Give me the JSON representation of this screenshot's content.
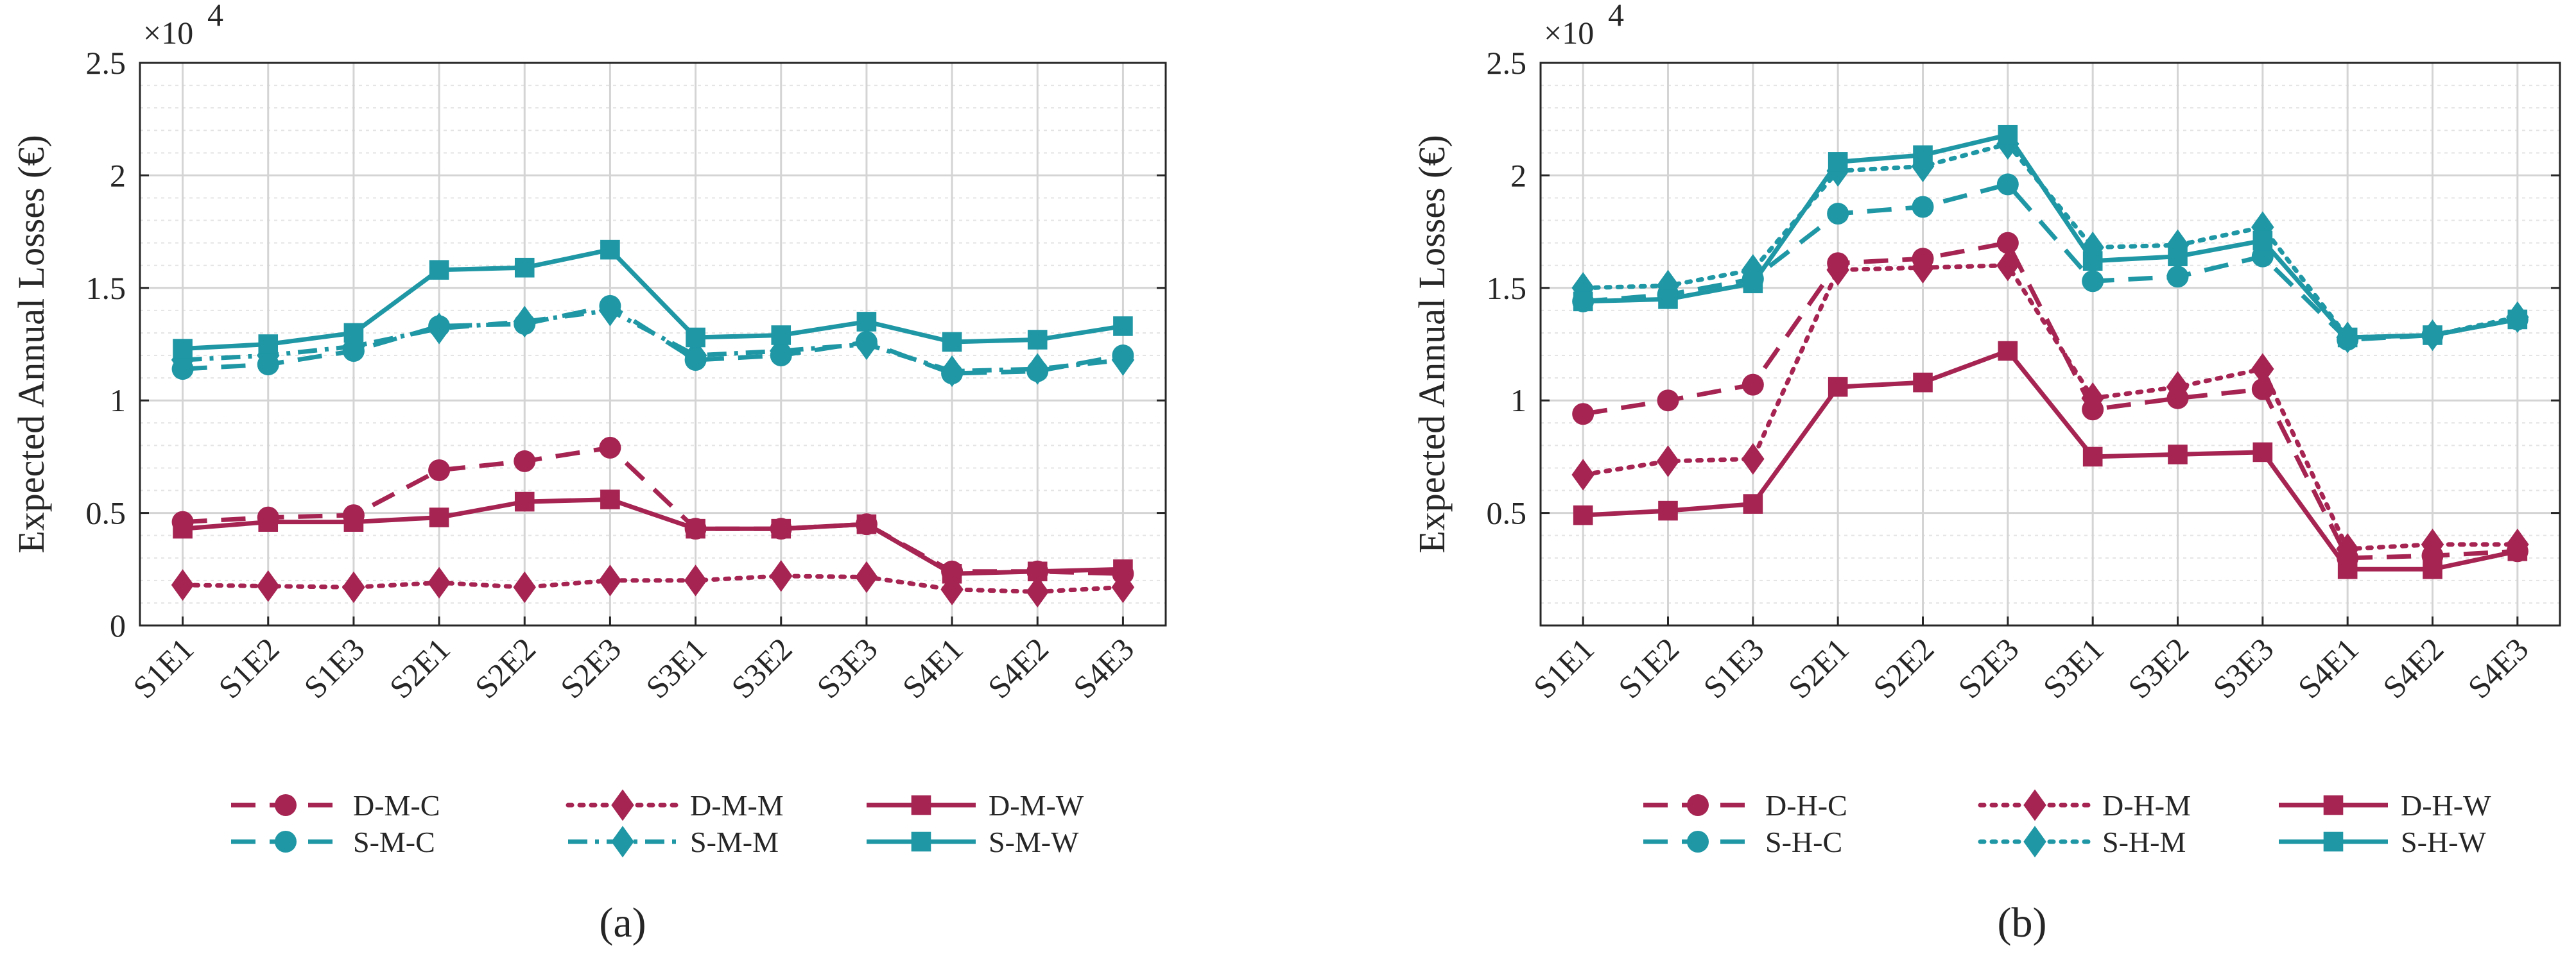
{
  "colors": {
    "damage": "#a52452",
    "seismic": "#1f97a5",
    "axis": "#262626"
  },
  "chart_data": [
    {
      "type": "line",
      "caption": "(a)",
      "ylabel": "Expected Annual Losses (€)",
      "exponent_label": "×10",
      "exponent_power": "4",
      "ylim": [
        0,
        25000
      ],
      "yticks": [
        0,
        5000,
        10000,
        15000,
        20000,
        25000
      ],
      "ytick_labels": [
        "0",
        "0.5",
        "1",
        "1.5",
        "2",
        "2.5"
      ],
      "categories": [
        "S1E1",
        "S1E2",
        "S1E3",
        "S2E1",
        "S2E2",
        "S2E3",
        "S3E1",
        "S3E2",
        "S3E3",
        "S4E1",
        "S4E2",
        "S4E3"
      ],
      "series": [
        {
          "name": "D-M-C",
          "color": "damage",
          "dash": "dashed",
          "marker": "circle",
          "values": [
            4600,
            4800,
            4900,
            6900,
            7300,
            7900,
            4300,
            4300,
            4500,
            2400,
            2400,
            2300
          ]
        },
        {
          "name": "D-M-M",
          "color": "damage",
          "dash": "dotted",
          "marker": "diamond",
          "values": [
            1800,
            1750,
            1700,
            1900,
            1700,
            2000,
            2000,
            2200,
            2150,
            1600,
            1500,
            1700
          ]
        },
        {
          "name": "D-M-W",
          "color": "damage",
          "dash": "solid",
          "marker": "square",
          "values": [
            4300,
            4600,
            4600,
            4800,
            5500,
            5600,
            4300,
            4300,
            4500,
            2300,
            2400,
            2500
          ]
        },
        {
          "name": "S-M-C",
          "color": "seismic",
          "dash": "dashed",
          "marker": "circle",
          "values": [
            11400,
            11600,
            12200,
            13300,
            13400,
            14200,
            11800,
            12000,
            12600,
            11200,
            11300,
            12000
          ]
        },
        {
          "name": "S-M-M",
          "color": "seismic",
          "dash": "dashdot",
          "marker": "diamond",
          "values": [
            11800,
            12000,
            12400,
            13200,
            13500,
            14000,
            12000,
            12200,
            12500,
            11300,
            11400,
            11800
          ]
        },
        {
          "name": "S-M-W",
          "color": "seismic",
          "dash": "solid",
          "marker": "square",
          "values": [
            12300,
            12500,
            13000,
            15800,
            15900,
            16700,
            12800,
            12900,
            13500,
            12600,
            12700,
            13300
          ]
        }
      ],
      "legend": [
        "D-M-C",
        "D-M-M",
        "D-M-W",
        "S-M-C",
        "S-M-M",
        "S-M-W"
      ],
      "grid": true
    },
    {
      "type": "line",
      "caption": "(b)",
      "ylabel": "Expected Annual Losses (€)",
      "exponent_label": "×10",
      "exponent_power": "4",
      "ylim": [
        0,
        25000
      ],
      "yticks": [
        5000,
        10000,
        15000,
        20000,
        25000
      ],
      "ytick_labels": [
        "0.5",
        "1",
        "1.5",
        "2",
        "2.5"
      ],
      "categories": [
        "S1E1",
        "S1E2",
        "S1E3",
        "S2E1",
        "S2E2",
        "S2E3",
        "S3E1",
        "S3E2",
        "S3E3",
        "S4E1",
        "S4E2",
        "S4E3"
      ],
      "series": [
        {
          "name": "D-H-C",
          "color": "damage",
          "dash": "dashed",
          "marker": "circle",
          "values": [
            9400,
            10000,
            10700,
            16100,
            16300,
            17000,
            9600,
            10100,
            10500,
            3000,
            3100,
            3300
          ]
        },
        {
          "name": "D-H-M",
          "color": "damage",
          "dash": "dotted",
          "marker": "diamond",
          "values": [
            6700,
            7300,
            7400,
            15800,
            15900,
            16000,
            10100,
            10600,
            11400,
            3400,
            3600,
            3600
          ]
        },
        {
          "name": "D-H-W",
          "color": "damage",
          "dash": "solid",
          "marker": "square",
          "values": [
            4900,
            5100,
            5400,
            10600,
            10800,
            12200,
            7500,
            7600,
            7700,
            2500,
            2500,
            3300
          ]
        },
        {
          "name": "S-H-C",
          "color": "seismic",
          "dash": "dashed",
          "marker": "circle",
          "values": [
            14400,
            14700,
            15400,
            18300,
            18600,
            19600,
            15300,
            15500,
            16400,
            12700,
            12900,
            13600
          ]
        },
        {
          "name": "S-H-M",
          "color": "seismic",
          "dash": "dotted",
          "marker": "diamond",
          "values": [
            15000,
            15100,
            15800,
            20200,
            20400,
            21400,
            16800,
            16900,
            17700,
            12800,
            12900,
            13700
          ]
        },
        {
          "name": "S-H-W",
          "color": "seismic",
          "dash": "solid",
          "marker": "square",
          "values": [
            14400,
            14500,
            15200,
            20600,
            20900,
            21800,
            16200,
            16400,
            17100,
            12800,
            12900,
            13600
          ]
        }
      ],
      "legend": [
        "D-H-C",
        "D-H-M",
        "D-H-W",
        "S-H-C",
        "S-H-M",
        "S-H-W"
      ],
      "grid": true
    }
  ]
}
